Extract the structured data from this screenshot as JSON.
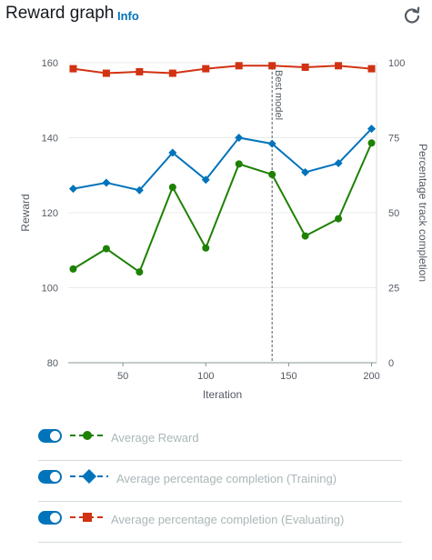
{
  "header": {
    "title": "Reward graph",
    "info_label": "Info"
  },
  "colors": {
    "reward": "#1d8102",
    "training": "#0073bb",
    "evaluating": "#d13212",
    "toggle_on": "#0073bb"
  },
  "chart_data": {
    "type": "line",
    "xlabel": "Iteration",
    "ylabel": "Reward",
    "y2label": "Percentage track completion",
    "xlim": [
      17,
      203
    ],
    "xticks": [
      50,
      100,
      150,
      200
    ],
    "ylim": [
      80,
      160
    ],
    "yticks": [
      80,
      100,
      120,
      140,
      160
    ],
    "y2lim": [
      0,
      100
    ],
    "y2ticks": [
      0,
      25,
      50,
      75,
      100
    ],
    "annotation": {
      "label": "Best model",
      "x": 140
    },
    "series": [
      {
        "name": "Average Reward",
        "axis": "left",
        "marker": "circle",
        "color": "#1d8102",
        "x": [
          20,
          40,
          60,
          80,
          100,
          120,
          140,
          160,
          180,
          200
        ],
        "y": [
          105,
          110.4,
          104.2,
          126.8,
          110.6,
          133,
          130.2,
          113.8,
          118.4,
          138.6
        ]
      },
      {
        "name": "Average percentage completion (Training)",
        "axis": "right",
        "marker": "diamond",
        "color": "#0073bb",
        "x": [
          20,
          40,
          60,
          80,
          100,
          120,
          140,
          160,
          180,
          200
        ],
        "y": [
          58,
          60,
          57.5,
          70,
          61,
          75,
          73,
          63.5,
          66.5,
          78
        ]
      },
      {
        "name": "Average percentage completion (Evaluating)",
        "axis": "right",
        "marker": "square",
        "color": "#d13212",
        "x": [
          20,
          40,
          60,
          80,
          100,
          120,
          140,
          160,
          180,
          200
        ],
        "y": [
          98,
          96.5,
          97,
          96.5,
          98,
          99,
          99,
          98.5,
          99,
          98
        ]
      }
    ]
  },
  "legend": [
    {
      "label": "Average Reward"
    },
    {
      "label": "Average percentage completion (Training)"
    },
    {
      "label": "Average percentage completion (Evaluating)"
    }
  ]
}
